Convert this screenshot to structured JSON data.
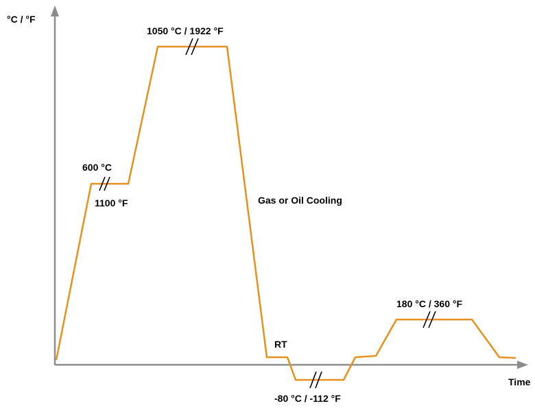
{
  "diagram": {
    "axis_y_label": "°C / °F",
    "axis_x_label": "Time",
    "labels": {
      "preheat_c": "600 °C",
      "preheat_f": "1100 °F",
      "austenitize": "1050 °C / 1922 °F",
      "cooling": "Gas or Oil Cooling",
      "rt": "RT",
      "subzero": "-80 °C / -112 °F",
      "temper": "180 °C / 360 °F"
    },
    "colors": {
      "curve": "#E6901E",
      "axis": "#8C8C8C",
      "text": "#000000"
    }
  }
}
